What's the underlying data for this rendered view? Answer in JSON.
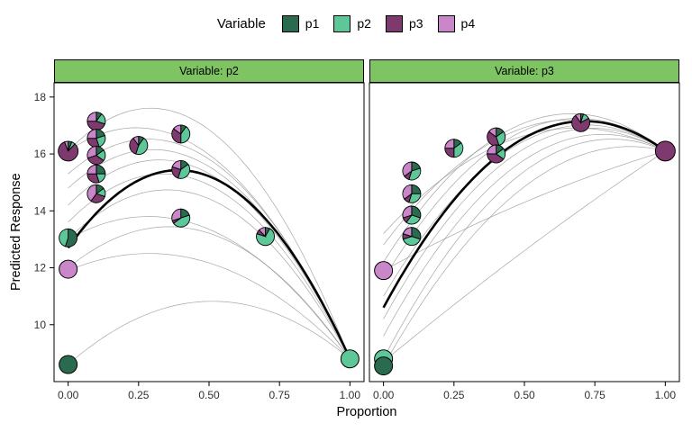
{
  "legend": {
    "title": "Variable",
    "items": [
      {
        "label": "p1",
        "color": "#2a6b4f"
      },
      {
        "label": "p2",
        "color": "#5ec79a"
      },
      {
        "label": "p3",
        "color": "#7e3a6e"
      },
      {
        "label": "p4",
        "color": "#c987c9"
      }
    ]
  },
  "axes": {
    "x_label": "Proportion",
    "y_label": "Predicted Response",
    "x_tick_labels": [
      "0.00",
      "0.25",
      "0.50",
      "0.75",
      "1.00"
    ],
    "x_tick_values": [
      0,
      0.25,
      0.5,
      0.75,
      1
    ],
    "y_tick_labels": [
      "10",
      "12",
      "14",
      "16",
      "18"
    ],
    "y_tick_values": [
      10,
      12,
      14,
      16,
      18
    ],
    "x_domain": [
      -0.05,
      1.05
    ],
    "y_domain": [
      8.0,
      18.5
    ]
  },
  "chart_data": {
    "type": "scatter",
    "description": "Faceted mixture-effect plot: predicted response vs component proportion; pie glyphs show mixture composition of p1-p4 at each design point; thin gray curves are individual effect trajectories, thick black curve is the mean effect.",
    "series_colors": [
      "#2a6b4f",
      "#5ec79a",
      "#7e3a6e",
      "#c987c9"
    ],
    "series_names": [
      "p1",
      "p2",
      "p3",
      "p4"
    ],
    "facets": [
      {
        "label": "Variable: p2",
        "strip_color": "#7fc463",
        "thick_curve": [
          [
            0,
            12.7
          ],
          [
            0.35,
            15.4
          ],
          [
            1,
            8.8
          ]
        ],
        "thin_curves": [
          [
            [
              0,
              16.1
            ],
            [
              0.35,
              17.55
            ],
            [
              1,
              8.8
            ]
          ],
          [
            [
              0,
              16.1
            ],
            [
              0.28,
              16.9
            ],
            [
              1,
              8.8
            ]
          ],
          [
            [
              0,
              15.3
            ],
            [
              0.32,
              16.5
            ],
            [
              1,
              8.8
            ]
          ],
          [
            [
              0,
              14.8
            ],
            [
              0.36,
              16.1
            ],
            [
              1,
              8.8
            ]
          ],
          [
            [
              0,
              14.2
            ],
            [
              0.4,
              15.7
            ],
            [
              1,
              8.8
            ]
          ],
          [
            [
              0,
              13.6
            ],
            [
              0.42,
              15.2
            ],
            [
              1,
              8.8
            ]
          ],
          [
            [
              0,
              13.0
            ],
            [
              0.45,
              14.6
            ],
            [
              1,
              8.8
            ]
          ],
          [
            [
              0,
              13.0
            ],
            [
              0.3,
              13.8
            ],
            [
              1,
              8.8
            ]
          ],
          [
            [
              0,
              12.0
            ],
            [
              0.42,
              13.4
            ],
            [
              1,
              8.8
            ]
          ],
          [
            [
              0,
              11.9
            ],
            [
              0.3,
              12.5
            ],
            [
              1,
              8.8
            ]
          ],
          [
            [
              0,
              8.6
            ],
            [
              0.35,
              10.6
            ],
            [
              1,
              8.8
            ]
          ]
        ],
        "points": [
          {
            "x": 0.0,
            "y": 16.1,
            "r": 11,
            "slices": [
              0.06,
              0.06,
              0.82,
              0.06
            ]
          },
          {
            "x": 0.0,
            "y": 13.05,
            "r": 10,
            "slices": [
              0.55,
              0.45,
              0,
              0
            ]
          },
          {
            "x": 0.0,
            "y": 11.95,
            "r": 10,
            "slices": [
              0,
              0,
              0,
              1
            ]
          },
          {
            "x": 0.0,
            "y": 8.6,
            "r": 10,
            "slices": [
              1,
              0,
              0,
              0
            ]
          },
          {
            "x": 0.1,
            "y": 17.15,
            "r": 10,
            "slices": [
              0.1,
              0.2,
              0.45,
              0.25
            ]
          },
          {
            "x": 0.1,
            "y": 16.55,
            "r": 10,
            "slices": [
              0.2,
              0.25,
              0.3,
              0.25
            ]
          },
          {
            "x": 0.1,
            "y": 15.95,
            "r": 10,
            "slices": [
              0.15,
              0.2,
              0.35,
              0.3
            ]
          },
          {
            "x": 0.1,
            "y": 15.3,
            "r": 10,
            "slices": [
              0.25,
              0.2,
              0.3,
              0.25
            ]
          },
          {
            "x": 0.1,
            "y": 14.6,
            "r": 10,
            "slices": [
              0.15,
              0.15,
              0.3,
              0.4
            ]
          },
          {
            "x": 0.25,
            "y": 16.3,
            "r": 10,
            "slices": [
              0.1,
              0.45,
              0.35,
              0.1
            ]
          },
          {
            "x": 0.4,
            "y": 16.7,
            "r": 10,
            "slices": [
              0.1,
              0.4,
              0.35,
              0.15
            ]
          },
          {
            "x": 0.4,
            "y": 15.45,
            "r": 10,
            "slices": [
              0.15,
              0.4,
              0.25,
              0.2
            ]
          },
          {
            "x": 0.4,
            "y": 13.75,
            "r": 10,
            "slices": [
              0.2,
              0.45,
              0.05,
              0.3
            ]
          },
          {
            "x": 0.7,
            "y": 13.1,
            "r": 10,
            "slices": [
              0.08,
              0.72,
              0.08,
              0.12
            ]
          },
          {
            "x": 1.0,
            "y": 8.8,
            "r": 10,
            "slices": [
              0,
              1,
              0,
              0
            ]
          }
        ]
      },
      {
        "label": "Variable: p3",
        "strip_color": "#7fc463",
        "thick_curve": [
          [
            0,
            10.6
          ],
          [
            0.7,
            17.15
          ],
          [
            1,
            16.1
          ]
        ],
        "thin_curves": [
          [
            [
              0,
              8.55
            ],
            [
              0.55,
              15.2
            ],
            [
              1,
              16.1
            ]
          ],
          [
            [
              0,
              8.8
            ],
            [
              0.6,
              16.0
            ],
            [
              1,
              16.1
            ]
          ],
          [
            [
              0,
              9.6
            ],
            [
              0.62,
              16.4
            ],
            [
              1,
              16.1
            ]
          ],
          [
            [
              0,
              10.2
            ],
            [
              0.65,
              16.8
            ],
            [
              1,
              16.1
            ]
          ],
          [
            [
              0,
              11.0
            ],
            [
              0.68,
              17.0
            ],
            [
              1,
              16.1
            ]
          ],
          [
            [
              0,
              11.6
            ],
            [
              0.7,
              17.25
            ],
            [
              1,
              16.1
            ]
          ],
          [
            [
              0,
              12.2
            ],
            [
              0.7,
              17.4
            ],
            [
              1,
              16.1
            ]
          ],
          [
            [
              0,
              12.8
            ],
            [
              0.68,
              17.2
            ],
            [
              1,
              16.1
            ]
          ],
          [
            [
              0,
              13.2
            ],
            [
              0.65,
              16.9
            ],
            [
              1,
              16.1
            ]
          ],
          [
            [
              0,
              11.9
            ],
            [
              0.5,
              14.3
            ],
            [
              1,
              16.1
            ]
          ],
          [
            [
              0,
              8.7
            ],
            [
              0.5,
              12.6
            ],
            [
              1,
              16.1
            ]
          ]
        ],
        "points": [
          {
            "x": 0.0,
            "y": 11.9,
            "r": 10,
            "slices": [
              0,
              0,
              0,
              1
            ]
          },
          {
            "x": 0.0,
            "y": 8.8,
            "r": 10,
            "slices": [
              0,
              1,
              0,
              0
            ]
          },
          {
            "x": 0.0,
            "y": 8.55,
            "r": 10,
            "slices": [
              1,
              0,
              0,
              0
            ]
          },
          {
            "x": 0.1,
            "y": 15.4,
            "r": 10,
            "slices": [
              0.2,
              0.35,
              0.1,
              0.35
            ]
          },
          {
            "x": 0.1,
            "y": 14.6,
            "r": 10,
            "slices": [
              0.25,
              0.3,
              0.1,
              0.35
            ]
          },
          {
            "x": 0.1,
            "y": 13.85,
            "r": 10,
            "slices": [
              0.3,
              0.3,
              0.1,
              0.3
            ]
          },
          {
            "x": 0.1,
            "y": 13.1,
            "r": 10,
            "slices": [
              0.3,
              0.4,
              0.1,
              0.2
            ]
          },
          {
            "x": 0.25,
            "y": 16.2,
            "r": 10,
            "slices": [
              0.15,
              0.35,
              0.25,
              0.25
            ]
          },
          {
            "x": 0.4,
            "y": 16.6,
            "r": 10,
            "slices": [
              0.15,
              0.3,
              0.4,
              0.15
            ]
          },
          {
            "x": 0.4,
            "y": 16.0,
            "r": 10,
            "slices": [
              0.15,
              0.2,
              0.4,
              0.25
            ]
          },
          {
            "x": 0.7,
            "y": 17.1,
            "r": 10,
            "slices": [
              0.05,
              0.12,
              0.73,
              0.1
            ]
          },
          {
            "x": 1.0,
            "y": 16.1,
            "r": 11,
            "slices": [
              0,
              0,
              1,
              0
            ]
          }
        ]
      }
    ]
  }
}
